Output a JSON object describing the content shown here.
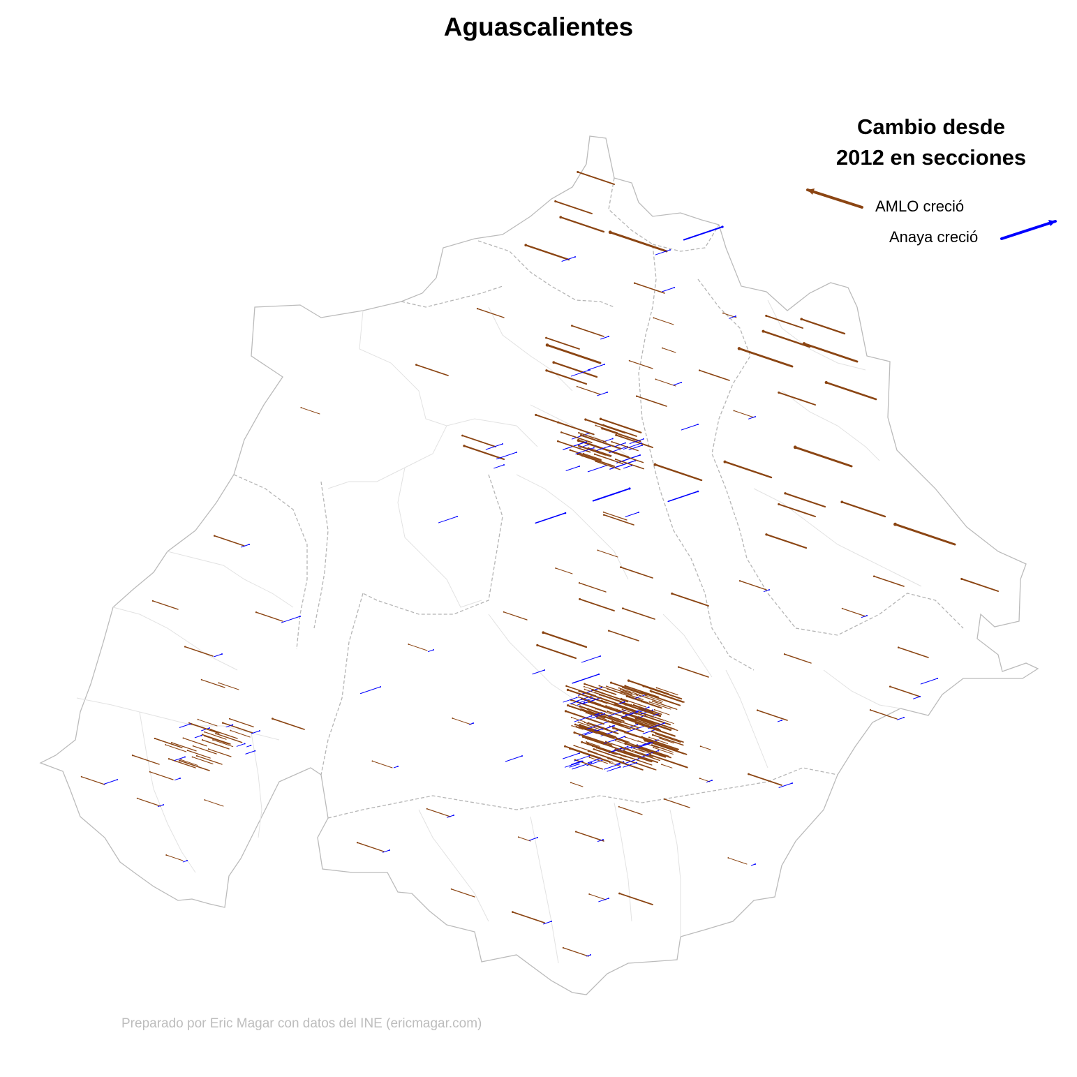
{
  "title": "Aguascalientes",
  "legend": {
    "title_line1": "Cambio desde",
    "title_line2": "2012 en secciones",
    "items": [
      {
        "label": "AMLO creció",
        "color": "#8B4513"
      },
      {
        "label": "Anaya creció",
        "color": "#0000FF"
      }
    ]
  },
  "credit": "Preparado por Eric Magar con datos del INE (ericmagar.com)",
  "colors": {
    "amlo": "#8B4513",
    "anaya": "#0000FF",
    "state_border": "#bbbbbb",
    "municipal_border": "#b5b5b5",
    "section_border": "#e2e2e2",
    "background": "#ffffff"
  }
}
